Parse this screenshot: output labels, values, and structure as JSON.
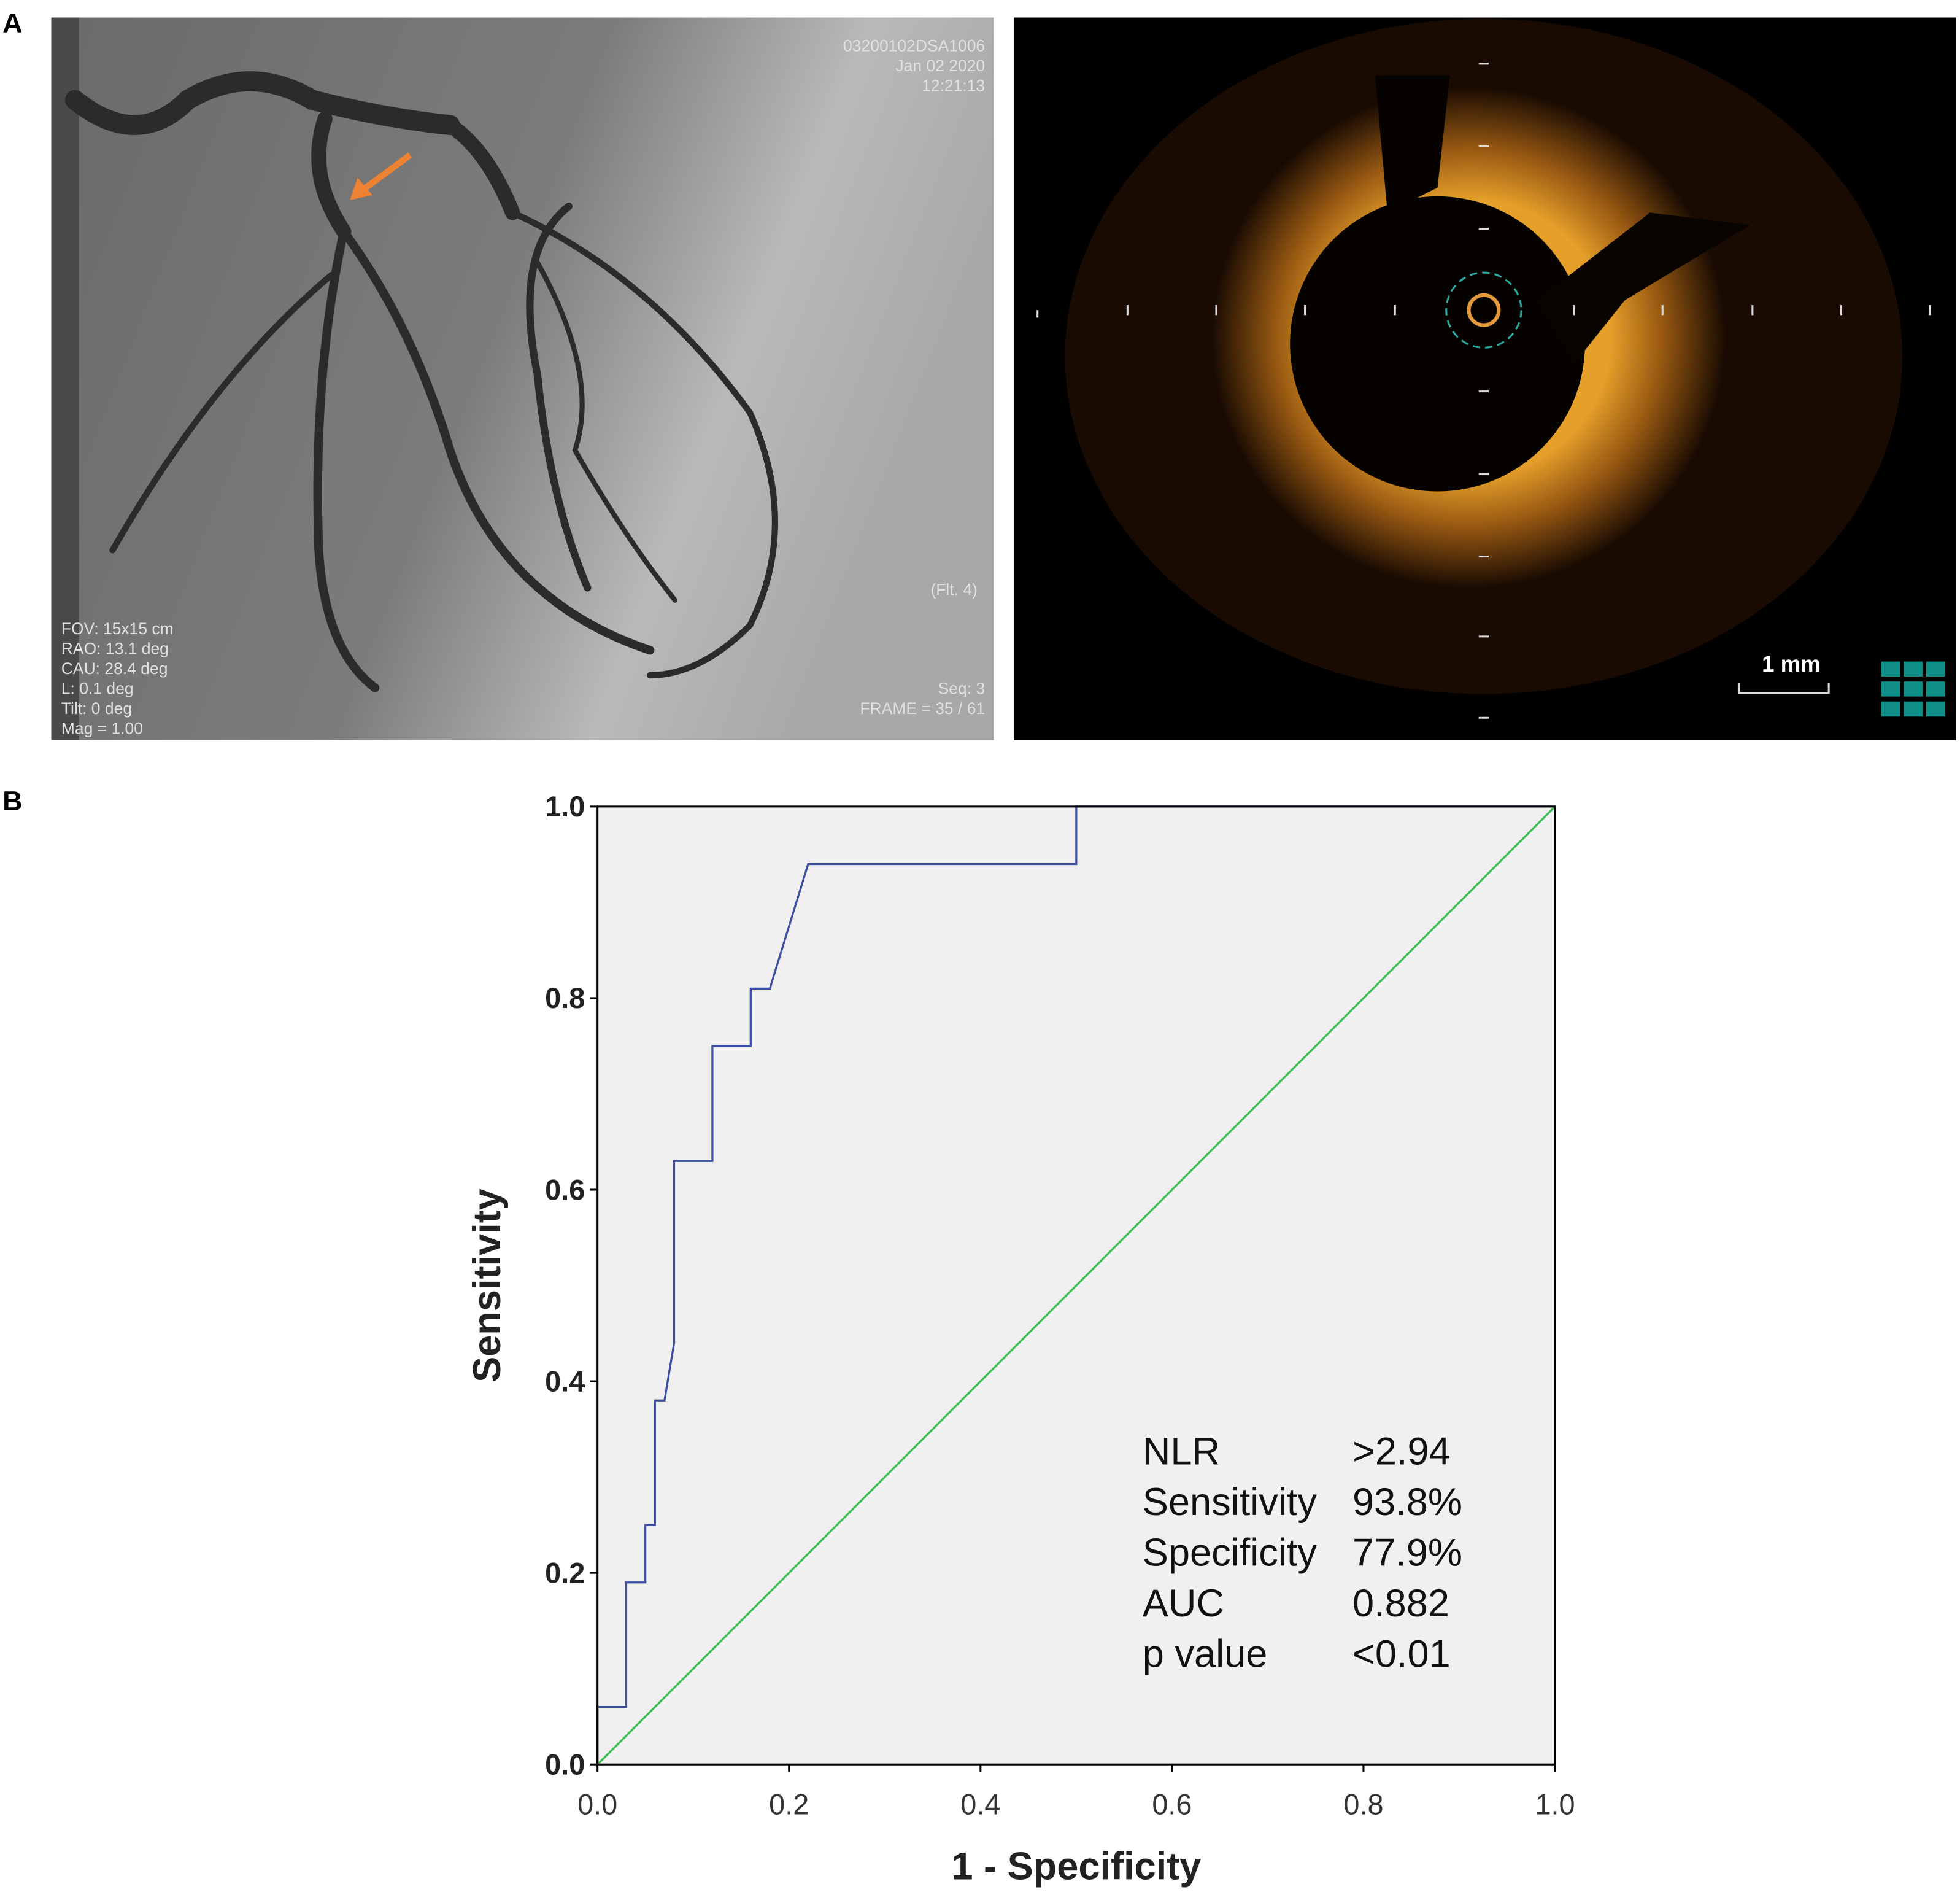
{
  "figure": {
    "panel_a": {
      "label": "A",
      "angiogram": {
        "header_lines": [
          "03200102DSA1006",
          "Jan 02 2020",
          "12:21:13"
        ],
        "filter_label": "(Flt. 4)",
        "footer_left_lines": [
          "FOV: 15x15 cm",
          "RAO: 13.1 deg",
          "CAU: 28.4 deg",
          "L: 0.1 deg",
          "Tilt: 0 deg",
          "Mag = 1.00"
        ],
        "footer_right_lines": [
          "Seq: 3",
          "FRAME = 35 / 61"
        ]
      },
      "oct": {
        "scale_label": "1 mm"
      }
    },
    "panel_b": {
      "label": "B"
    }
  },
  "chart_data": {
    "type": "line",
    "xlabel": "1 - Specificity",
    "ylabel": "Sensitivity",
    "xlim": [
      0,
      1
    ],
    "ylim": [
      0,
      1
    ],
    "xticks": [
      {
        "value": 0,
        "label": "0.0"
      },
      0.2,
      0.4,
      0.6,
      0.8,
      {
        "value": 1,
        "label": "1.0"
      }
    ],
    "yticks": [
      {
        "value": 0,
        "label": "0.0"
      },
      0.2,
      0.4,
      0.6,
      0.8,
      {
        "value": 1,
        "label": "1.0"
      }
    ],
    "grid": false,
    "background": "#f0f0f0",
    "series": [
      {
        "color": "#3d4fa3",
        "x": [
          0,
          0,
          0.03,
          0.03,
          0.05,
          0.05,
          0.06,
          0.06,
          0.07,
          0.08,
          0.08,
          0.12,
          0.12,
          0.16,
          0.16,
          0.18,
          0.22,
          0.5,
          0.5,
          1
        ],
        "values": [
          0,
          0.06,
          0.06,
          0.19,
          0.19,
          0.25,
          0.25,
          0.38,
          0.38,
          0.44,
          0.63,
          0.63,
          0.75,
          0.75,
          0.81,
          0.81,
          0.94,
          0.94,
          1,
          1
        ]
      },
      {
        "color": "#3cbf52",
        "x": [
          0,
          1
        ],
        "values": [
          0,
          1
        ]
      }
    ],
    "annotation_table": [
      [
        "NLR",
        ">2.94"
      ],
      [
        "Sensitivity",
        "93.8%"
      ],
      [
        "Specificity",
        "77.9%"
      ],
      [
        "AUC",
        "0.882"
      ],
      [
        "p value",
        "<0.01"
      ]
    ]
  }
}
